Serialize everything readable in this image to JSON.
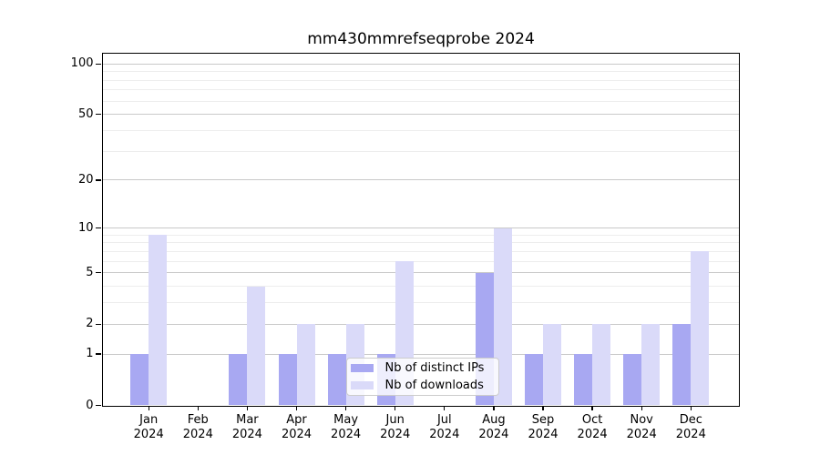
{
  "chart_data": {
    "type": "bar",
    "title": "mm430mmrefseqprobe 2024",
    "categories": [
      "Jan",
      "Feb",
      "Mar",
      "Apr",
      "May",
      "Jun",
      "Jul",
      "Aug",
      "Sep",
      "Oct",
      "Nov",
      "Dec"
    ],
    "x_year_label": "2024",
    "series": [
      {
        "name": "Nb of distinct IPs",
        "color": "#a8a8f2",
        "values": [
          1,
          0,
          1,
          1,
          1,
          1,
          0,
          5,
          1,
          1,
          1,
          2
        ]
      },
      {
        "name": "Nb of downloads",
        "color": "#dadaf9",
        "values": [
          9,
          0,
          4,
          2,
          2,
          6,
          0,
          10,
          2,
          2,
          2,
          7
        ]
      }
    ],
    "y_scale": "log10(1+y)",
    "y_major_ticks": [
      0,
      1,
      2,
      5,
      10,
      20,
      50,
      100
    ],
    "y_minor_ticks": [
      3,
      4,
      6,
      7,
      8,
      9,
      30,
      40,
      60,
      70,
      80,
      90
    ],
    "ylim": [
      0,
      115.7
    ],
    "grid": "horizontal-on",
    "legend_position": "inside-bottom-center",
    "colors": {
      "major_grid": "#c9c9c9",
      "minor_grid": "#ededed",
      "axis": "#000000",
      "background": "#ffffff"
    }
  }
}
